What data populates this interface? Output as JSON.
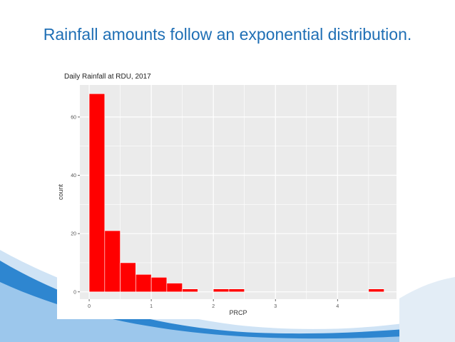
{
  "slide": {
    "title": "Rainfall amounts follow an exponential distribution."
  },
  "colors": {
    "title": "#1f6fb5",
    "bar_fill": "#ff0000",
    "panel_background": "#ebebeb",
    "grid": "#ffffff",
    "swoosh_blue": "#2e86d0"
  },
  "chart_data": {
    "type": "bar",
    "title": "Daily Rainfall at RDU, 2017",
    "xlabel": "PRCP",
    "ylabel": "count",
    "x_bin_edges": [
      0,
      0.25,
      0.5,
      0.75,
      1.0,
      1.25,
      1.5,
      1.75,
      2.0,
      2.25,
      2.5,
      2.75,
      3.0,
      3.25,
      3.5,
      3.75,
      4.0,
      4.25,
      4.5,
      4.75
    ],
    "values": [
      68,
      21,
      10,
      6,
      5,
      3,
      1,
      0,
      1,
      1,
      0,
      0,
      0,
      0,
      0,
      0,
      0,
      0,
      1
    ],
    "xlim": [
      -0.15,
      4.95
    ],
    "ylim": [
      -2.5,
      71
    ],
    "x_ticks": [
      0,
      1,
      2,
      3,
      4
    ],
    "y_ticks": [
      0,
      20,
      40,
      60
    ],
    "grid": true,
    "legend": "none"
  }
}
